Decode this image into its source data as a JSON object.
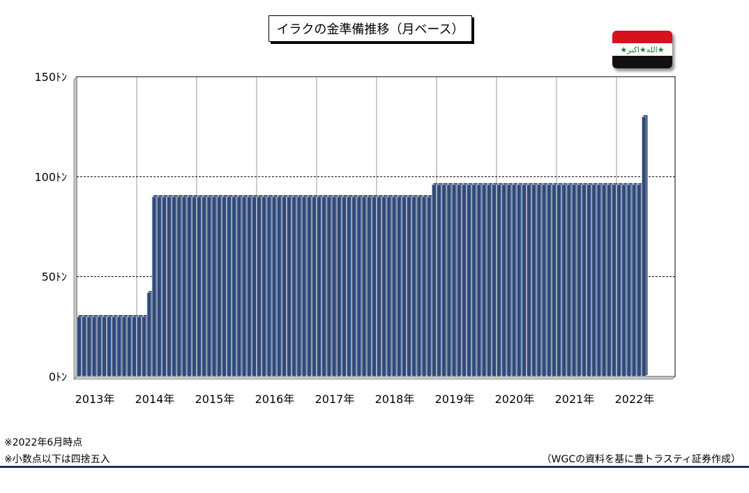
{
  "title": "イラクの金準備推移（月ベース）",
  "flag": {
    "name": "iraq-flag",
    "script_text": "★الله★اكبر★",
    "colors": [
      "#d6131d",
      "#ffffff",
      "#111111"
    ]
  },
  "notes": [
    "※2022年6月時点",
    "※小数点以下は四捨五入"
  ],
  "source": "（WGCの資料を基に豊トラスティ証券作成）",
  "chart_data": {
    "type": "bar",
    "title": "イラクの金準備推移（月ベース）",
    "ylabel": "",
    "xlabel": "",
    "ylim": [
      0,
      150
    ],
    "y_ticks": [
      0,
      50,
      100,
      150
    ],
    "y_tick_labels": [
      "0ﾄﾝ",
      "50ﾄﾝ",
      "100ﾄﾝ",
      "150ﾄﾝ"
    ],
    "x_tick_labels": [
      "2013年",
      "2014年",
      "2015年",
      "2016年",
      "2017年",
      "2018年",
      "2019年",
      "2020年",
      "2021年",
      "2022年"
    ],
    "grid": true,
    "bar_color": "#2f4a7a",
    "series": [
      {
        "values": [
          30,
          30,
          30,
          30,
          30,
          30,
          30,
          30,
          30,
          30,
          30,
          30,
          30,
          30,
          42,
          90,
          90,
          90,
          90,
          90,
          90,
          90,
          90,
          90,
          90,
          90,
          90,
          90,
          90,
          90,
          90,
          90,
          90,
          90,
          90,
          90,
          90,
          90,
          90,
          90,
          90,
          90,
          90,
          90,
          90,
          90,
          90,
          90,
          90,
          90,
          90,
          90,
          90,
          90,
          90,
          90,
          90,
          90,
          90,
          90,
          90,
          90,
          90,
          90,
          90,
          90,
          90,
          90,
          90,
          90,
          90,
          96,
          96,
          96,
          96,
          96,
          96,
          96,
          96,
          96,
          96,
          96,
          96,
          96,
          96,
          96,
          96,
          96,
          96,
          96,
          96,
          96,
          96,
          96,
          96,
          96,
          96,
          96,
          96,
          96,
          96,
          96,
          96,
          96,
          96,
          96,
          96,
          96,
          96,
          96,
          96,
          96,
          96,
          130
        ]
      }
    ]
  }
}
